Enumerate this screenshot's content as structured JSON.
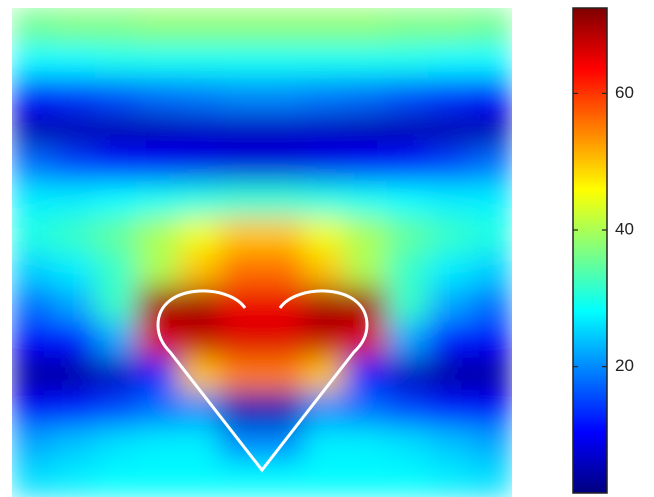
{
  "chart_data": {
    "type": "heatmap",
    "colormap": "jet",
    "z": [
      [
        36,
        37,
        37,
        38,
        38,
        38,
        38,
        38,
        38,
        37,
        37,
        36
      ],
      [
        28,
        28,
        29,
        29,
        29,
        29,
        29,
        29,
        29,
        29,
        28,
        28
      ],
      [
        12,
        14,
        16,
        18,
        19,
        20,
        20,
        19,
        18,
        16,
        14,
        12
      ],
      [
        5,
        5,
        5,
        5,
        6,
        6,
        6,
        6,
        5,
        5,
        5,
        5
      ],
      [
        18,
        15,
        12,
        10,
        9,
        8,
        8,
        9,
        10,
        12,
        15,
        18
      ],
      [
        27,
        27,
        28,
        29,
        30,
        31,
        31,
        30,
        29,
        28,
        27,
        27
      ],
      [
        30,
        32,
        35,
        40,
        45,
        50,
        50,
        45,
        40,
        35,
        32,
        30
      ],
      [
        25,
        27,
        32,
        40,
        50,
        56,
        56,
        50,
        40,
        32,
        27,
        25
      ],
      [
        18,
        22,
        32,
        70,
        70,
        65,
        65,
        70,
        70,
        32,
        22,
        18
      ],
      [
        10,
        12,
        22,
        66,
        68,
        66,
        66,
        68,
        66,
        22,
        12,
        10
      ],
      [
        4,
        4,
        6,
        12,
        50,
        55,
        55,
        50,
        12,
        6,
        4,
        4
      ],
      [
        10,
        12,
        15,
        18,
        20,
        5,
        5,
        20,
        18,
        15,
        12,
        10
      ],
      [
        22,
        24,
        26,
        27,
        27,
        20,
        20,
        27,
        27,
        26,
        24,
        22
      ],
      [
        26,
        27,
        28,
        28,
        28,
        28,
        28,
        28,
        28,
        28,
        27,
        26
      ]
    ],
    "zlim": [
      1.5,
      72.5
    ],
    "zticks": [
      20,
      40,
      60
    ]
  }
}
